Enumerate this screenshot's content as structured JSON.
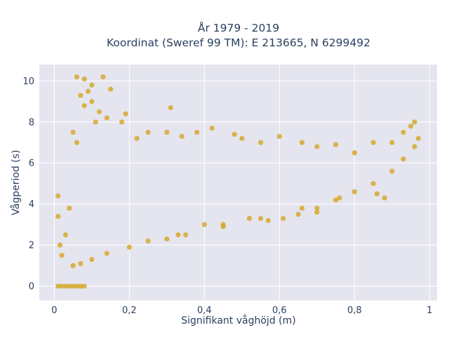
{
  "chart_data": {
    "type": "scatter",
    "title_line1": "År 1979 - 2019",
    "title_line2": "Koordinat (Sweref 99 TM): E 213665, N 6299492",
    "xlabel": "Signifikant våghöjd (m)",
    "ylabel": "Vågperiod (s)",
    "xlim": [
      -0.04,
      1.02
    ],
    "ylim": [
      -0.7,
      10.8
    ],
    "xticks": [
      0,
      0.2,
      0.4,
      0.6,
      0.8,
      1
    ],
    "xtick_labels": [
      "0",
      "0,2",
      "0,4",
      "0,6",
      "0,8",
      "1"
    ],
    "yticks": [
      0,
      2,
      4,
      6,
      8,
      10
    ],
    "ytick_labels": [
      "0",
      "2",
      "4",
      "6",
      "8",
      "10"
    ],
    "grid": true,
    "marker_color": "#D4A520",
    "plot_background": "#E5E5EF",
    "points": [
      [
        0.01,
        0.0
      ],
      [
        0.02,
        0.0
      ],
      [
        0.03,
        0.0
      ],
      [
        0.04,
        0.0
      ],
      [
        0.05,
        0.0
      ],
      [
        0.06,
        0.0
      ],
      [
        0.07,
        0.0
      ],
      [
        0.08,
        0.0
      ],
      [
        0.01,
        4.4
      ],
      [
        0.01,
        3.4
      ],
      [
        0.015,
        2.0
      ],
      [
        0.02,
        1.5
      ],
      [
        0.03,
        2.5
      ],
      [
        0.04,
        3.8
      ],
      [
        0.06,
        10.2
      ],
      [
        0.08,
        10.1
      ],
      [
        0.13,
        10.2
      ],
      [
        0.09,
        9.5
      ],
      [
        0.1,
        9.0
      ],
      [
        0.07,
        9.3
      ],
      [
        0.12,
        8.5
      ],
      [
        0.11,
        8.0
      ],
      [
        0.05,
        7.5
      ],
      [
        0.06,
        7.0
      ],
      [
        0.08,
        8.8
      ],
      [
        0.14,
        8.2
      ],
      [
        0.15,
        9.6
      ],
      [
        0.1,
        9.8
      ],
      [
        0.18,
        8.0
      ],
      [
        0.22,
        7.2
      ],
      [
        0.25,
        7.5
      ],
      [
        0.3,
        7.5
      ],
      [
        0.34,
        7.3
      ],
      [
        0.38,
        7.5
      ],
      [
        0.42,
        7.7
      ],
      [
        0.48,
        7.4
      ],
      [
        0.5,
        7.2
      ],
      [
        0.55,
        7.0
      ],
      [
        0.6,
        7.3
      ],
      [
        0.66,
        7.0
      ],
      [
        0.7,
        6.8
      ],
      [
        0.75,
        6.9
      ],
      [
        0.8,
        6.5
      ],
      [
        0.85,
        7.0
      ],
      [
        0.9,
        7.0
      ],
      [
        0.95,
        7.8
      ],
      [
        0.96,
        8.0
      ],
      [
        0.93,
        7.5
      ],
      [
        0.97,
        7.2
      ],
      [
        0.96,
        6.8
      ],
      [
        0.31,
        8.7
      ],
      [
        0.19,
        8.4
      ],
      [
        0.33,
        2.5
      ],
      [
        0.4,
        3.0
      ],
      [
        0.45,
        2.9
      ],
      [
        0.52,
        3.3
      ],
      [
        0.57,
        3.2
      ],
      [
        0.61,
        3.3
      ],
      [
        0.65,
        3.5
      ],
      [
        0.7,
        3.8
      ],
      [
        0.75,
        4.2
      ],
      [
        0.8,
        4.6
      ],
      [
        0.85,
        5.0
      ],
      [
        0.9,
        5.6
      ],
      [
        0.93,
        6.2
      ],
      [
        0.88,
        4.3
      ],
      [
        0.86,
        4.5
      ],
      [
        0.7,
        3.6
      ],
      [
        0.05,
        1.0
      ],
      [
        0.07,
        1.1
      ],
      [
        0.1,
        1.3
      ],
      [
        0.14,
        1.6
      ],
      [
        0.2,
        1.9
      ],
      [
        0.25,
        2.2
      ],
      [
        0.3,
        2.3
      ],
      [
        0.35,
        2.5
      ],
      [
        0.45,
        3.0
      ],
      [
        0.55,
        3.3
      ],
      [
        0.66,
        3.8
      ],
      [
        0.76,
        4.3
      ]
    ]
  }
}
